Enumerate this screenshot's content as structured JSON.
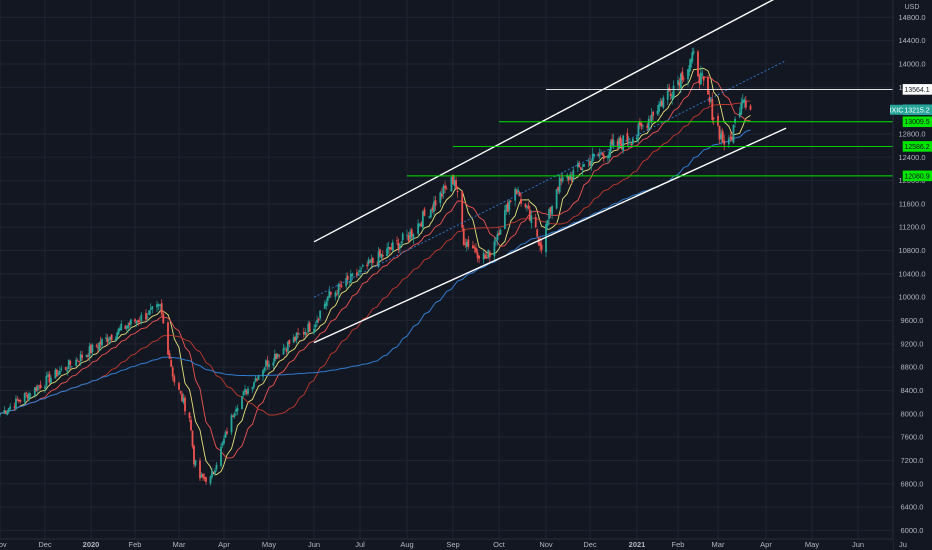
{
  "chart_data": {
    "type": "candlestick",
    "symbol": "IXIC",
    "currency": "USD",
    "last_price": 13215.2,
    "colors": {
      "background": "#131722",
      "grid": "#1f2433",
      "up": "#26a69a",
      "down": "#ef5350",
      "ma_fast": "#e8e37a",
      "ma_mid": "#ef5350",
      "ma_slow_red": "#c0392b",
      "ma_slow_blue": "#2f7dd1",
      "channel": "#ffffff",
      "support_lines": "#00e600",
      "resistance_line": "#ffffff",
      "projection": "#2f7dd1"
    },
    "y_ticks": [
      "14800.0",
      "14400.0",
      "14000.0",
      "13600.0",
      "12800.0",
      "12400.0",
      "12000.0",
      "11600.0",
      "11200.0",
      "10800.0",
      "10400.0",
      "10000.0",
      "9600.0",
      "9200.0",
      "8800.0",
      "8400.0",
      "8000.0",
      "7600.0",
      "7200.0",
      "6800.0",
      "6400.0",
      "6000.0"
    ],
    "x_ticks": [
      {
        "label": "Nov",
        "date": "2019-11-01",
        "bold": false
      },
      {
        "label": "Dec",
        "date": "2019-12-02",
        "bold": false
      },
      {
        "label": "2020",
        "date": "2020-01-02",
        "bold": true
      },
      {
        "label": "Feb",
        "date": "2020-02-03",
        "bold": false
      },
      {
        "label": "Mar",
        "date": "2020-03-02",
        "bold": false
      },
      {
        "label": "Apr",
        "date": "2020-04-01",
        "bold": false
      },
      {
        "label": "May",
        "date": "2020-05-01",
        "bold": false
      },
      {
        "label": "Jun",
        "date": "2020-06-01",
        "bold": false
      },
      {
        "label": "Jul",
        "date": "2020-07-01",
        "bold": false
      },
      {
        "label": "Aug",
        "date": "2020-08-03",
        "bold": false
      },
      {
        "label": "Sep",
        "date": "2020-09-01",
        "bold": false
      },
      {
        "label": "Oct",
        "date": "2020-10-01",
        "bold": false
      },
      {
        "label": "Nov",
        "date": "2020-11-02",
        "bold": false
      },
      {
        "label": "Dec",
        "date": "2020-12-01",
        "bold": false
      },
      {
        "label": "2021",
        "date": "2021-01-04",
        "bold": true
      },
      {
        "label": "Feb",
        "date": "2021-02-01",
        "bold": false
      },
      {
        "label": "Mar",
        "date": "2021-03-01",
        "bold": false
      },
      {
        "label": "Apr",
        "date": "2021-04-01",
        "bold": false
      },
      {
        "label": "May",
        "date": "2021-05-03",
        "bold": false
      },
      {
        "label": "Jun",
        "date": "2021-06-01",
        "bold": false
      },
      {
        "label": "Ju",
        "date": "2021-07-01",
        "bold": false
      }
    ],
    "price_labels": [
      {
        "text": "13564.1",
        "value": 13564.1,
        "kind": "resistance"
      },
      {
        "text": "13215.2",
        "value": 13215.2,
        "kind": "last"
      },
      {
        "text": "13009.5",
        "value": 13009.5,
        "kind": "support"
      },
      {
        "text": "12586.2",
        "value": 12586.2,
        "kind": "support"
      },
      {
        "text": "12080.9",
        "value": 12080.9,
        "kind": "support"
      }
    ],
    "horizontal_lines": [
      {
        "value": 13564.1,
        "from": "2020-11-02",
        "color_key": "resistance_line"
      },
      {
        "value": 13009.5,
        "from": "2020-10-01",
        "color_key": "support_lines"
      },
      {
        "value": 12586.2,
        "from": "2020-09-01",
        "color_key": "support_lines"
      },
      {
        "value": 12080.9,
        "from": "2020-08-03",
        "color_key": "support_lines"
      }
    ],
    "channel_lines": [
      {
        "points": [
          [
            "2020-06-01",
            10950
          ],
          [
            "2021-04-15",
            15220
          ]
        ],
        "color_key": "channel"
      },
      {
        "points": [
          [
            "2020-06-01",
            9220
          ],
          [
            "2021-04-15",
            12900
          ]
        ],
        "color_key": "channel"
      }
    ],
    "projection_line": {
      "points": [
        [
          "2020-06-01",
          10000
        ],
        [
          "2021-04-15",
          14060
        ]
      ]
    },
    "anchors": [
      [
        "2019-11-01",
        8000
      ],
      [
        "2019-12-16",
        8800
      ],
      [
        "2020-01-17",
        9350
      ],
      [
        "2020-02-19",
        9820
      ],
      [
        "2020-02-28",
        8560
      ],
      [
        "2020-03-09",
        7950
      ],
      [
        "2020-03-12",
        7200
      ],
      [
        "2020-03-16",
        6900
      ],
      [
        "2020-03-23",
        6880
      ],
      [
        "2020-04-09",
        8150
      ],
      [
        "2020-04-30",
        8900
      ],
      [
        "2020-06-01",
        9550
      ],
      [
        "2020-06-10",
        10000
      ],
      [
        "2020-07-10",
        10600
      ],
      [
        "2020-08-04",
        11050
      ],
      [
        "2020-09-02",
        12050
      ],
      [
        "2020-09-08",
        11000
      ],
      [
        "2020-09-23",
        10650
      ],
      [
        "2020-10-12",
        11900
      ],
      [
        "2020-10-30",
        10900
      ],
      [
        "2020-11-09",
        11900
      ],
      [
        "2020-12-01",
        12350
      ],
      [
        "2021-01-04",
        12800
      ],
      [
        "2021-02-12",
        14100
      ],
      [
        "2021-03-04",
        12700
      ],
      [
        "2021-03-08",
        12600
      ],
      [
        "2021-03-17",
        13500
      ],
      [
        "2021-03-22",
        13215.2
      ]
    ],
    "ma_series": [
      {
        "key": "ma_fast",
        "period": 10,
        "width": 0.9
      },
      {
        "key": "ma_mid",
        "period": 20,
        "width": 0.9
      },
      {
        "key": "ma_slow_red",
        "period": 50,
        "width": 0.9
      },
      {
        "key": "ma_slow_blue",
        "period": 100,
        "width": 1.0
      }
    ]
  }
}
